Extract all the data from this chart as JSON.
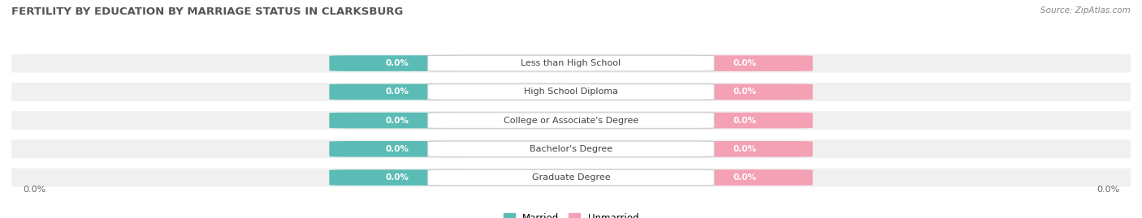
{
  "title": "FERTILITY BY EDUCATION BY MARRIAGE STATUS IN CLARKSBURG",
  "source": "Source: ZipAtlas.com",
  "categories": [
    "Less than High School",
    "High School Diploma",
    "College or Associate's Degree",
    "Bachelor's Degree",
    "Graduate Degree"
  ],
  "married_values": [
    0.0,
    0.0,
    0.0,
    0.0,
    0.0
  ],
  "unmarried_values": [
    0.0,
    0.0,
    0.0,
    0.0,
    0.0
  ],
  "married_color": "#5bbcb5",
  "unmarried_color": "#f4a0b5",
  "row_bg_color": "#f0f0f0",
  "label_color": "#444444",
  "title_color": "#555555",
  "axis_label": "0.0%",
  "figsize": [
    14.06,
    2.69
  ],
  "dpi": 100
}
